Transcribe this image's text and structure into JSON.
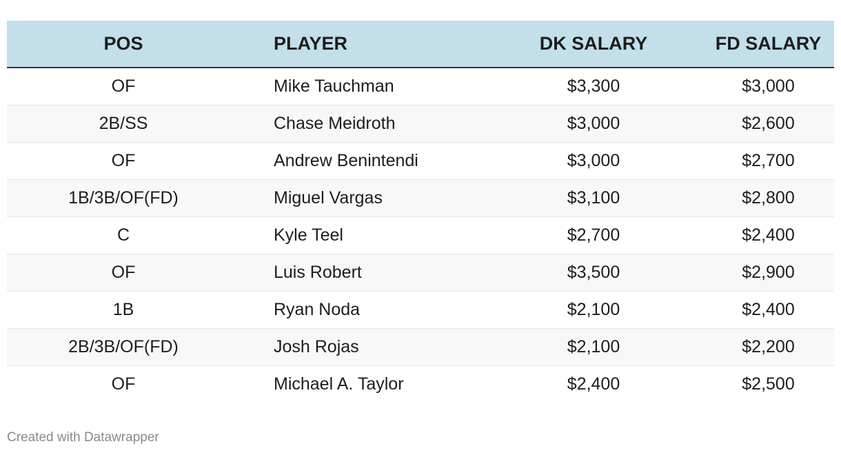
{
  "chart_data": {
    "type": "table",
    "columns": [
      "POS",
      "PLAYER",
      "DK SALARY",
      "FD SALARY"
    ],
    "rows": [
      [
        "OF",
        "Mike Tauchman",
        "$3,300",
        "$3,000"
      ],
      [
        "2B/SS",
        "Chase Meidroth",
        "$3,000",
        "$2,600"
      ],
      [
        "OF",
        "Andrew Benintendi",
        "$3,000",
        "$2,700"
      ],
      [
        "1B/3B/OF(FD)",
        "Miguel Vargas",
        "$3,100",
        "$2,800"
      ],
      [
        "C",
        "Kyle Teel",
        "$2,700",
        "$2,400"
      ],
      [
        "OF",
        "Luis Robert",
        "$3,500",
        "$2,900"
      ],
      [
        "1B",
        "Ryan Noda",
        "$2,100",
        "$2,400"
      ],
      [
        "2B/3B/OF(FD)",
        "Josh Rojas",
        "$2,100",
        "$2,200"
      ],
      [
        "OF",
        "Michael A. Taylor",
        "$2,400",
        "$2,500"
      ]
    ],
    "header_color": "#c2dfea",
    "stripe_color": "#f8f8f8"
  },
  "footer": {
    "credit": "Created with Datawrapper"
  }
}
